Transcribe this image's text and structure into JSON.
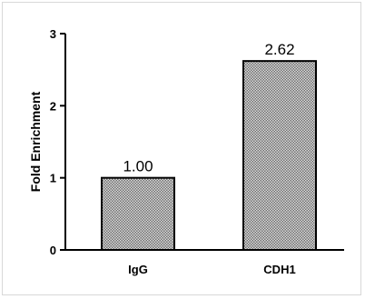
{
  "chart_data": {
    "type": "bar",
    "categories": [
      "IgG",
      "CDH1"
    ],
    "values": [
      1.0,
      2.62
    ],
    "data_labels": [
      "1.00",
      "2.62"
    ],
    "title": "",
    "xlabel": "",
    "ylabel": "Fold Enrichment",
    "ylim": [
      0,
      3
    ],
    "yticks": [
      "0",
      "1",
      "2",
      "3"
    ],
    "grid": false,
    "legend": "none",
    "bar_color": "#9a9a9a",
    "bar_pattern": "stipple",
    "bar_edge_color": "#000000"
  }
}
